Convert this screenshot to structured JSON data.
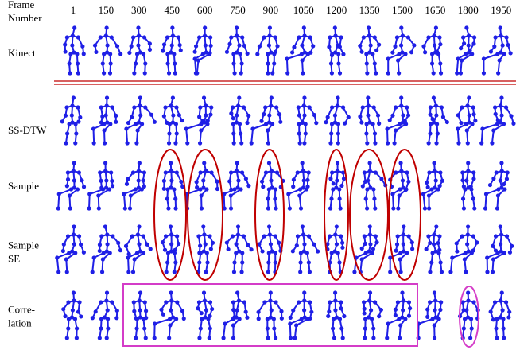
{
  "header": {
    "label_lines": [
      "Frame",
      "Number"
    ],
    "frames": [
      "1",
      "150",
      "300",
      "450",
      "600",
      "750",
      "900",
      "1050",
      "1200",
      "1350",
      "1500",
      "1650",
      "1800",
      "1950"
    ]
  },
  "rows": [
    {
      "label_lines": [
        "Kinect"
      ]
    },
    {
      "label_lines": [
        "SS-DTW"
      ]
    },
    {
      "label_lines": [
        "Sample"
      ]
    },
    {
      "label_lines": [
        "Sample",
        "SE"
      ]
    },
    {
      "label_lines": [
        "Corre-",
        "lation"
      ]
    }
  ]
}
